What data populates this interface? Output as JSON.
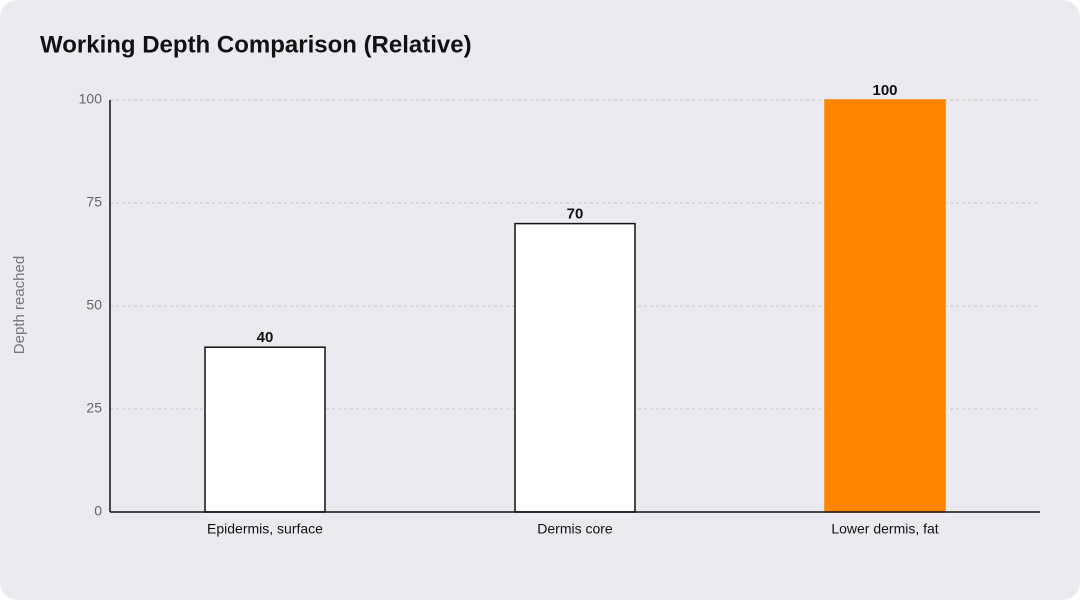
{
  "chart_data": {
    "type": "bar",
    "title": "Working Depth Comparison (Relative)",
    "ylabel": "Depth reached",
    "categories": [
      "Epidermis, surface",
      "Dermis core",
      "Lower dermis, fat"
    ],
    "values": [
      40,
      70,
      100
    ],
    "colors": [
      "#ffffff",
      "#ffffff",
      "#ff8500"
    ],
    "edgecolors": [
      "#111111",
      "#111111",
      "#ff8500"
    ],
    "ylim": [
      0,
      100
    ],
    "yticks": [
      0,
      25,
      50,
      75,
      100
    ],
    "grid": true
  }
}
